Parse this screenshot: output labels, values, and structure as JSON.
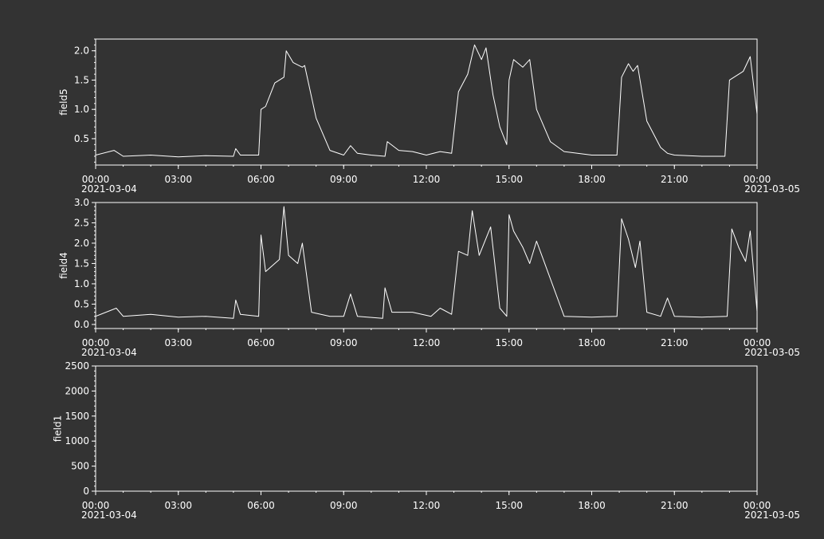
{
  "colors": {
    "background": "#333333",
    "foreground": "#ffffff"
  },
  "chart_data": [
    {
      "type": "line",
      "ylabel": "field5",
      "grid": false,
      "xlim": [
        "2021-03-04 00:00",
        "2021-03-05 00:00"
      ],
      "ylim": [
        0.05,
        2.2
      ],
      "yticks": [
        "0.5",
        "1.0",
        "1.5",
        "2.0"
      ],
      "xticks": [
        "00:00",
        "03:00",
        "06:00",
        "09:00",
        "12:00",
        "15:00",
        "18:00",
        "21:00",
        "00:00"
      ],
      "xdates": {
        "start": "2021-03-04",
        "end": "2021-03-05"
      },
      "series": [
        {
          "x": [
            "2021-03-04 00:00",
            "2021-03-04 00:40",
            "2021-03-04 01:00",
            "2021-03-04 02:00",
            "2021-03-04 03:00",
            "2021-03-04 04:00",
            "2021-03-04 05:00",
            "2021-03-04 05:05",
            "2021-03-04 05:15",
            "2021-03-04 05:55",
            "2021-03-04 06:00",
            "2021-03-04 06:10",
            "2021-03-04 06:30",
            "2021-03-04 06:50",
            "2021-03-04 06:55",
            "2021-03-04 07:10",
            "2021-03-04 07:30",
            "2021-03-04 07:35",
            "2021-03-04 08:00",
            "2021-03-04 08:30",
            "2021-03-04 09:00",
            "2021-03-04 09:15",
            "2021-03-04 09:30",
            "2021-03-04 10:00",
            "2021-03-04 10:30",
            "2021-03-04 10:35",
            "2021-03-04 11:00",
            "2021-03-04 11:30",
            "2021-03-04 12:00",
            "2021-03-04 12:30",
            "2021-03-04 12:55",
            "2021-03-04 13:10",
            "2021-03-04 13:30",
            "2021-03-04 13:45",
            "2021-03-04 14:00",
            "2021-03-04 14:10",
            "2021-03-04 14:25",
            "2021-03-04 14:40",
            "2021-03-04 14:55",
            "2021-03-04 15:00",
            "2021-03-04 15:10",
            "2021-03-04 15:30",
            "2021-03-04 15:45",
            "2021-03-04 16:00",
            "2021-03-04 16:30",
            "2021-03-04 17:00",
            "2021-03-04 18:00",
            "2021-03-04 18:55",
            "2021-03-04 19:05",
            "2021-03-04 19:20",
            "2021-03-04 19:30",
            "2021-03-04 19:40",
            "2021-03-04 20:00",
            "2021-03-04 20:30",
            "2021-03-04 20:45",
            "2021-03-04 21:00",
            "2021-03-04 22:00",
            "2021-03-04 22:50",
            "2021-03-04 23:00",
            "2021-03-04 23:30",
            "2021-03-04 23:45",
            "2021-03-05 00:00"
          ],
          "y": [
            0.22,
            0.3,
            0.2,
            0.22,
            0.19,
            0.21,
            0.2,
            0.33,
            0.22,
            0.22,
            1.0,
            1.05,
            1.45,
            1.55,
            2.0,
            1.8,
            1.72,
            1.75,
            0.85,
            0.3,
            0.22,
            0.38,
            0.25,
            0.22,
            0.2,
            0.45,
            0.3,
            0.28,
            0.22,
            0.28,
            0.25,
            1.3,
            1.6,
            2.1,
            1.85,
            2.05,
            1.25,
            0.7,
            0.4,
            1.5,
            1.85,
            1.72,
            1.85,
            1.0,
            0.45,
            0.28,
            0.22,
            0.22,
            1.55,
            1.78,
            1.65,
            1.75,
            0.8,
            0.35,
            0.25,
            0.22,
            0.2,
            0.2,
            1.5,
            1.65,
            1.9,
            0.92
          ]
        }
      ]
    },
    {
      "type": "line",
      "ylabel": "field4",
      "grid": false,
      "xlim": [
        "2021-03-04 00:00",
        "2021-03-05 00:00"
      ],
      "ylim": [
        -0.1,
        3.0
      ],
      "yticks": [
        "0.0",
        "0.5",
        "1.0",
        "1.5",
        "2.0",
        "2.5",
        "3.0"
      ],
      "xticks": [
        "00:00",
        "03:00",
        "06:00",
        "09:00",
        "12:00",
        "15:00",
        "18:00",
        "21:00",
        "00:00"
      ],
      "xdates": {
        "start": "2021-03-04",
        "end": "2021-03-05"
      },
      "series": [
        {
          "x": [
            "2021-03-04 00:00",
            "2021-03-04 00:45",
            "2021-03-04 01:00",
            "2021-03-04 02:00",
            "2021-03-04 03:00",
            "2021-03-04 04:00",
            "2021-03-04 05:00",
            "2021-03-04 05:05",
            "2021-03-04 05:15",
            "2021-03-04 05:55",
            "2021-03-04 06:00",
            "2021-03-04 06:10",
            "2021-03-04 06:40",
            "2021-03-04 06:50",
            "2021-03-04 07:00",
            "2021-03-04 07:20",
            "2021-03-04 07:30",
            "2021-03-04 07:50",
            "2021-03-04 08:30",
            "2021-03-04 09:00",
            "2021-03-04 09:15",
            "2021-03-04 09:30",
            "2021-03-04 10:25",
            "2021-03-04 10:30",
            "2021-03-04 10:45",
            "2021-03-04 11:30",
            "2021-03-04 12:10",
            "2021-03-04 12:30",
            "2021-03-04 12:55",
            "2021-03-04 13:10",
            "2021-03-04 13:30",
            "2021-03-04 13:40",
            "2021-03-04 13:55",
            "2021-03-04 14:20",
            "2021-03-04 14:40",
            "2021-03-04 14:55",
            "2021-03-04 15:00",
            "2021-03-04 15:10",
            "2021-03-04 15:30",
            "2021-03-04 15:45",
            "2021-03-04 16:00",
            "2021-03-04 17:00",
            "2021-03-04 18:00",
            "2021-03-04 18:55",
            "2021-03-04 19:05",
            "2021-03-04 19:20",
            "2021-03-04 19:35",
            "2021-03-04 19:45",
            "2021-03-04 20:00",
            "2021-03-04 20:30",
            "2021-03-04 20:45",
            "2021-03-04 21:00",
            "2021-03-04 22:00",
            "2021-03-04 22:55",
            "2021-03-04 23:05",
            "2021-03-04 23:20",
            "2021-03-04 23:35",
            "2021-03-04 23:45",
            "2021-03-05 00:00"
          ],
          "y": [
            0.2,
            0.4,
            0.2,
            0.25,
            0.18,
            0.2,
            0.15,
            0.6,
            0.25,
            0.2,
            2.2,
            1.3,
            1.6,
            2.9,
            1.7,
            1.5,
            2.0,
            0.3,
            0.2,
            0.2,
            0.75,
            0.2,
            0.15,
            0.9,
            0.3,
            0.3,
            0.2,
            0.4,
            0.25,
            1.8,
            1.7,
            2.8,
            1.7,
            2.4,
            0.4,
            0.2,
            2.7,
            2.3,
            1.9,
            1.5,
            2.05,
            0.2,
            0.18,
            0.2,
            2.6,
            2.1,
            1.4,
            2.05,
            0.3,
            0.2,
            0.65,
            0.2,
            0.18,
            0.2,
            2.35,
            1.9,
            1.55,
            2.3,
            0.32
          ]
        }
      ]
    },
    {
      "type": "line",
      "ylabel": "field1",
      "grid": false,
      "xlim": [
        "2021-03-04 00:00",
        "2021-03-05 00:00"
      ],
      "ylim": [
        0,
        2500
      ],
      "yticks": [
        "0",
        "500",
        "1000",
        "1500",
        "2000",
        "2500"
      ],
      "xticks": [
        "00:00",
        "03:00",
        "06:00",
        "09:00",
        "12:00",
        "15:00",
        "18:00",
        "21:00",
        "00:00"
      ],
      "xdates": {
        "start": "2021-03-04",
        "end": "2021-03-05"
      },
      "series": []
    }
  ]
}
